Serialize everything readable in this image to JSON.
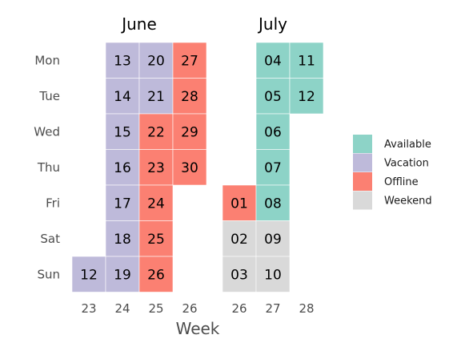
{
  "chart_data": {
    "type": "heatmap",
    "xlabel": "Week",
    "days": [
      "Mon",
      "Tue",
      "Wed",
      "Thu",
      "Fri",
      "Sat",
      "Sun"
    ],
    "legend": {
      "placement": "right",
      "entries": [
        {
          "key": "available",
          "label": "Available",
          "color": "#8dd3c7"
        },
        {
          "key": "vacation",
          "label": "Vacation",
          "color": "#bebada"
        },
        {
          "key": "offline",
          "label": "Offline",
          "color": "#fb8072"
        },
        {
          "key": "weekend",
          "label": "Weekend",
          "color": "#d9d9d9"
        }
      ]
    },
    "panels": [
      {
        "month": "June",
        "weeks": [
          "23",
          "24",
          "25",
          "26"
        ],
        "cells": [
          {
            "week": "23",
            "day": "Sun",
            "label": "12",
            "status": "vacation"
          },
          {
            "week": "24",
            "day": "Mon",
            "label": "13",
            "status": "vacation"
          },
          {
            "week": "24",
            "day": "Tue",
            "label": "14",
            "status": "vacation"
          },
          {
            "week": "24",
            "day": "Wed",
            "label": "15",
            "status": "vacation"
          },
          {
            "week": "24",
            "day": "Thu",
            "label": "16",
            "status": "vacation"
          },
          {
            "week": "24",
            "day": "Fri",
            "label": "17",
            "status": "vacation"
          },
          {
            "week": "24",
            "day": "Sat",
            "label": "18",
            "status": "vacation"
          },
          {
            "week": "24",
            "day": "Sun",
            "label": "19",
            "status": "vacation"
          },
          {
            "week": "25",
            "day": "Mon",
            "label": "20",
            "status": "vacation"
          },
          {
            "week": "25",
            "day": "Tue",
            "label": "21",
            "status": "vacation"
          },
          {
            "week": "25",
            "day": "Wed",
            "label": "22",
            "status": "offline"
          },
          {
            "week": "25",
            "day": "Thu",
            "label": "23",
            "status": "offline"
          },
          {
            "week": "25",
            "day": "Fri",
            "label": "24",
            "status": "offline"
          },
          {
            "week": "25",
            "day": "Sat",
            "label": "25",
            "status": "offline"
          },
          {
            "week": "25",
            "day": "Sun",
            "label": "26",
            "status": "offline"
          },
          {
            "week": "26",
            "day": "Mon",
            "label": "27",
            "status": "offline"
          },
          {
            "week": "26",
            "day": "Tue",
            "label": "28",
            "status": "offline"
          },
          {
            "week": "26",
            "day": "Wed",
            "label": "29",
            "status": "offline"
          },
          {
            "week": "26",
            "day": "Thu",
            "label": "30",
            "status": "offline"
          }
        ]
      },
      {
        "month": "July",
        "weeks": [
          "26",
          "27",
          "28"
        ],
        "cells": [
          {
            "week": "26",
            "day": "Fri",
            "label": "01",
            "status": "offline"
          },
          {
            "week": "26",
            "day": "Sat",
            "label": "02",
            "status": "weekend"
          },
          {
            "week": "26",
            "day": "Sun",
            "label": "03",
            "status": "weekend"
          },
          {
            "week": "27",
            "day": "Mon",
            "label": "04",
            "status": "available"
          },
          {
            "week": "27",
            "day": "Tue",
            "label": "05",
            "status": "available"
          },
          {
            "week": "27",
            "day": "Wed",
            "label": "06",
            "status": "available"
          },
          {
            "week": "27",
            "day": "Thu",
            "label": "07",
            "status": "available"
          },
          {
            "week": "27",
            "day": "Fri",
            "label": "08",
            "status": "available"
          },
          {
            "week": "27",
            "day": "Sat",
            "label": "09",
            "status": "weekend"
          },
          {
            "week": "27",
            "day": "Sun",
            "label": "10",
            "status": "weekend"
          },
          {
            "week": "28",
            "day": "Mon",
            "label": "11",
            "status": "available"
          },
          {
            "week": "28",
            "day": "Tue",
            "label": "12",
            "status": "available"
          }
        ]
      }
    ]
  }
}
